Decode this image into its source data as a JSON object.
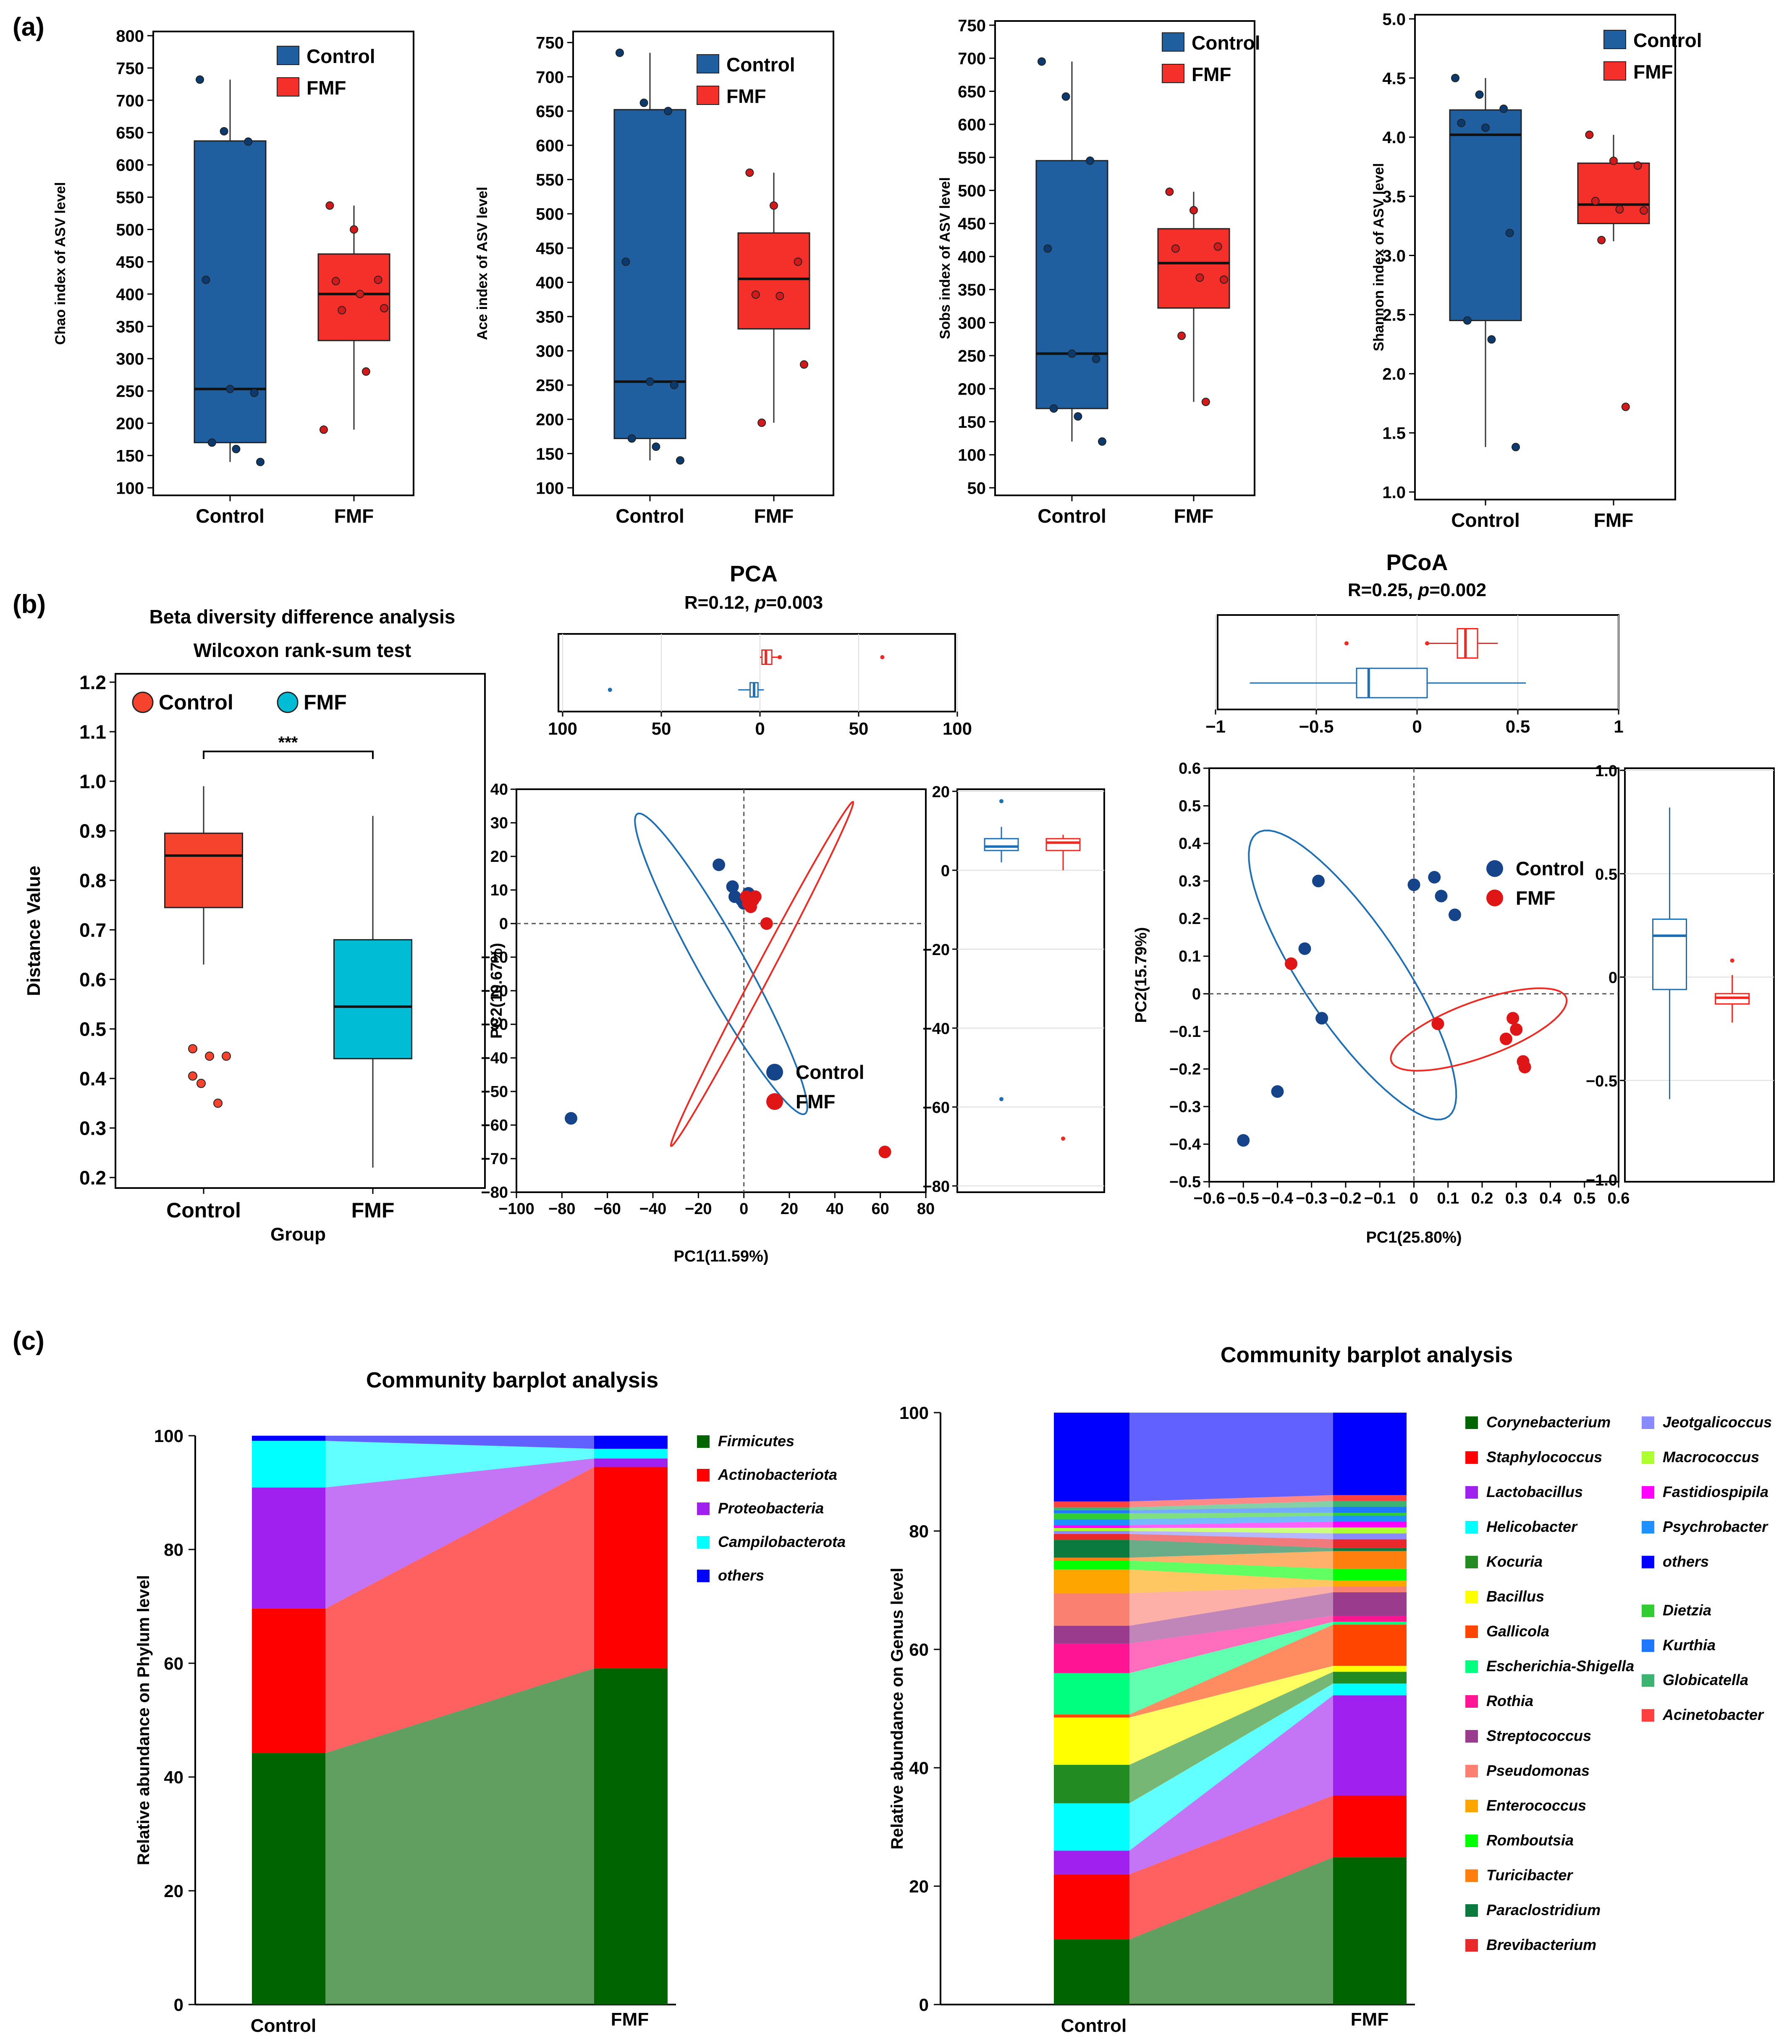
{
  "panel_labels": {
    "a": "(a)",
    "b": "(b)",
    "c": "(c)"
  },
  "colors": {
    "control_box": "#1f5f9f",
    "control_point": "#0b3a6e",
    "fmf_box": "#f5302a",
    "fmf_point": "#d31a1a",
    "beta_control": "#f5432d",
    "beta_fmf": "#00bcd4",
    "ord_control": "#1f6fb5",
    "ord_control_point": "#15448b",
    "ord_fmf": "#f02a22",
    "ord_fmf_point": "#e01515"
  },
  "chart_data": [
    {
      "id": "chao",
      "type": "box",
      "ylabel": "Chao index of ASV level",
      "yticks": [
        100,
        150,
        200,
        250,
        300,
        350,
        400,
        450,
        500,
        550,
        600,
        650,
        700,
        750,
        800
      ],
      "ylim": [
        100,
        800
      ],
      "categories": [
        "Control",
        "FMF"
      ],
      "legend": [
        "Control",
        "FMF"
      ],
      "boxes": [
        {
          "group": "Control",
          "q1": 170,
          "median": 253,
          "q3": 637,
          "whisker_low": 140,
          "whisker_high": 732,
          "points": [
            732,
            652,
            636,
            422,
            253,
            247,
            170,
            160,
            140
          ]
        },
        {
          "group": "FMF",
          "q1": 328,
          "median": 400,
          "q3": 462,
          "whisker_low": 190,
          "whisker_high": 537,
          "points": [
            537,
            500,
            422,
            420,
            400,
            378,
            375,
            280,
            190
          ]
        }
      ]
    },
    {
      "id": "ace",
      "type": "box",
      "ylabel": "Ace index of ASV level",
      "yticks": [
        100,
        150,
        200,
        250,
        300,
        350,
        400,
        450,
        500,
        550,
        600,
        650,
        700,
        750
      ],
      "ylim": [
        100,
        760
      ],
      "categories": [
        "Control",
        "FMF"
      ],
      "legend": [
        "Control",
        "FMF"
      ],
      "boxes": [
        {
          "group": "Control",
          "q1": 172,
          "median": 255,
          "q3": 652,
          "whisker_low": 140,
          "whisker_high": 735,
          "points": [
            735,
            662,
            650,
            430,
            255,
            250,
            172,
            160,
            140
          ]
        },
        {
          "group": "FMF",
          "q1": 332,
          "median": 405,
          "q3": 472,
          "whisker_low": 195,
          "whisker_high": 560,
          "points": [
            560,
            512,
            430,
            382,
            380,
            280,
            195
          ]
        }
      ]
    },
    {
      "id": "sobs",
      "type": "box",
      "ylabel": "Sobs index of ASV level",
      "yticks": [
        50,
        100,
        150,
        200,
        250,
        300,
        350,
        400,
        450,
        500,
        550,
        600,
        650,
        700,
        750
      ],
      "ylim": [
        50,
        750
      ],
      "categories": [
        "Control",
        "FMF"
      ],
      "legend": [
        "Control",
        "FMF"
      ],
      "boxes": [
        {
          "group": "Control",
          "q1": 170,
          "median": 253,
          "q3": 545,
          "whisker_low": 120,
          "whisker_high": 695,
          "points": [
            695,
            642,
            545,
            412,
            253,
            245,
            170,
            158,
            120
          ]
        },
        {
          "group": "FMF",
          "q1": 322,
          "median": 390,
          "q3": 442,
          "whisker_low": 180,
          "whisker_high": 498,
          "points": [
            498,
            470,
            415,
            412,
            368,
            365,
            280,
            180
          ]
        }
      ]
    },
    {
      "id": "shannon",
      "type": "box",
      "ylabel": "Shannon index of ASV level",
      "yticks": [
        1.0,
        1.5,
        2.0,
        2.5,
        3.0,
        3.5,
        4.0,
        4.5,
        5.0
      ],
      "ylim": [
        1.0,
        5.0
      ],
      "categories": [
        "Control",
        "FMF"
      ],
      "legend": [
        "Control",
        "FMF"
      ],
      "boxes": [
        {
          "group": "Control",
          "q1": 2.45,
          "median": 4.02,
          "q3": 4.23,
          "whisker_low": 1.38,
          "whisker_high": 4.5,
          "points": [
            4.5,
            4.36,
            4.24,
            4.12,
            4.08,
            3.19,
            2.45,
            2.29,
            1.38
          ]
        },
        {
          "group": "FMF",
          "q1": 3.27,
          "median": 3.43,
          "q3": 3.78,
          "whisker_low": 3.12,
          "whisker_high": 4.02,
          "points": [
            4.02,
            3.8,
            3.76,
            3.46,
            3.39,
            3.38,
            3.13,
            1.72
          ]
        }
      ]
    },
    {
      "id": "beta",
      "type": "box",
      "title": "Beta diversity difference analysis",
      "subtitle": "Wilcoxon rank-sum test",
      "xlabel": "Group",
      "ylabel": "Distance Value",
      "yticks": [
        0.2,
        0.3,
        0.4,
        0.5,
        0.6,
        0.7,
        0.8,
        0.9,
        1.0,
        1.1,
        1.2
      ],
      "ylim": [
        0.2,
        1.2
      ],
      "categories": [
        "Control",
        "FMF"
      ],
      "legend": [
        "Control",
        "FMF"
      ],
      "significance": "***",
      "boxes": [
        {
          "group": "Control",
          "q1": 0.745,
          "median": 0.85,
          "q3": 0.895,
          "whisker_low": 0.63,
          "whisker_high": 0.99,
          "outliers": [
            0.46,
            0.445,
            0.445,
            0.405,
            0.39,
            0.35
          ]
        },
        {
          "group": "FMF",
          "q1": 0.44,
          "median": 0.545,
          "q3": 0.68,
          "whisker_low": 0.22,
          "whisker_high": 0.93,
          "outliers": []
        }
      ]
    },
    {
      "id": "pca",
      "type": "scatter",
      "title": "PCA",
      "stat_r": "R=0.12, ",
      "stat_p_label": "p",
      "stat_p_value": "=0.003",
      "xlabel": "PC1(11.59%)",
      "ylabel": "PC2(10.67%)",
      "xlim": [
        -100,
        80
      ],
      "ylim": [
        -80,
        40
      ],
      "xticks": [
        -100,
        -80,
        -60,
        -40,
        -20,
        0,
        20,
        40,
        60,
        80
      ],
      "yticks": [
        -80,
        -70,
        -60,
        -50,
        -40,
        -30,
        -20,
        -10,
        0,
        10,
        20,
        30,
        40
      ],
      "top_ticks": [
        "100",
        "50",
        "0",
        "50",
        "100"
      ],
      "right_ticks": [
        "20",
        "0",
        "−20",
        "−40",
        "−60",
        "−80"
      ],
      "legend": [
        "Control",
        "FMF"
      ],
      "series": [
        {
          "name": "Control",
          "points": [
            [
              -11,
              17.5
            ],
            [
              -5,
              11
            ],
            [
              -4,
              8
            ],
            [
              -1,
              7
            ],
            [
              0,
              6
            ],
            [
              2,
              9
            ],
            [
              -76,
              -58
            ]
          ]
        },
        {
          "name": "FMF",
          "points": [
            [
              1,
              8
            ],
            [
              2,
              7
            ],
            [
              3,
              6
            ],
            [
              4,
              7
            ],
            [
              5,
              8
            ],
            [
              3,
              5
            ],
            [
              2,
              6
            ],
            [
              10,
              0
            ],
            [
              62,
              -68
            ]
          ]
        }
      ],
      "ellipses": [
        {
          "name": "Control",
          "cx": -10,
          "cy": -12,
          "rx": 58,
          "ry": 9,
          "angle_deg": -50
        },
        {
          "name": "FMF",
          "cx": 8,
          "cy": -15,
          "rx": 65,
          "ry": 3,
          "angle_deg": 52
        }
      ],
      "top_box": [
        {
          "name": "FMF",
          "q1": 1,
          "median": 3,
          "q3": 6,
          "whisker_low": 0,
          "whisker_high": 9,
          "outliers": [
            62,
            10
          ]
        },
        {
          "name": "Control",
          "q1": -5,
          "median": -3,
          "q3": -1,
          "whisker_low": -11,
          "whisker_high": 2,
          "outliers": [
            -76
          ]
        }
      ],
      "right_box": [
        {
          "name": "Control",
          "q1": 5,
          "median": 6,
          "q3": 8,
          "whisker_low": 2,
          "whisker_high": 11,
          "outliers": [
            17.5,
            -58
          ]
        },
        {
          "name": "FMF",
          "q1": 5,
          "median": 7,
          "q3": 8,
          "whisker_low": 0,
          "whisker_high": 9,
          "outliers": [
            -68
          ]
        }
      ]
    },
    {
      "id": "pcoa",
      "type": "scatter",
      "title": "PCoA",
      "stat_r": "R=0.25, ",
      "stat_p_label": "p",
      "stat_p_value": "=0.002",
      "xlabel": "PC1(25.80%)",
      "ylabel": "PC2(15.79%)",
      "xlim": [
        -0.6,
        0.6
      ],
      "ylim": [
        -0.5,
        0.6
      ],
      "xticks": [
        -0.6,
        -0.5,
        -0.4,
        -0.3,
        -0.2,
        -0.1,
        0,
        0.1,
        0.2,
        0.3,
        0.4,
        0.5,
        0.6
      ],
      "yticks": [
        -0.5,
        -0.4,
        -0.3,
        -0.2,
        -0.1,
        0,
        0.1,
        0.2,
        0.3,
        0.4,
        0.5,
        0.6
      ],
      "top_ticks": [
        "−1",
        "−0.5",
        "0",
        "0.5",
        "1"
      ],
      "right_ticks": [
        "1.0",
        "0.5",
        "0",
        "−0.5",
        "−1.0"
      ],
      "legend": [
        "Control",
        "FMF"
      ],
      "series": [
        {
          "name": "Control",
          "points": [
            [
              -0.5,
              -0.39
            ],
            [
              -0.4,
              -0.26
            ],
            [
              -0.32,
              0.12
            ],
            [
              -0.28,
              0.3
            ],
            [
              -0.27,
              -0.065
            ],
            [
              0,
              0.29
            ],
            [
              0.06,
              0.31
            ],
            [
              0.08,
              0.26
            ],
            [
              0.12,
              0.21
            ]
          ]
        },
        {
          "name": "FMF",
          "points": [
            [
              -0.36,
              0.08
            ],
            [
              0.07,
              -0.08
            ],
            [
              0.27,
              -0.12
            ],
            [
              0.29,
              -0.065
            ],
            [
              0.3,
              -0.095
            ],
            [
              0.32,
              -0.18
            ],
            [
              0.325,
              -0.195
            ]
          ]
        }
      ],
      "ellipses": [
        {
          "name": "Control",
          "cx": -0.18,
          "cy": 0.05,
          "rx": 0.47,
          "ry": 0.14,
          "angle_deg": -53
        },
        {
          "name": "FMF",
          "cx": 0.19,
          "cy": -0.095,
          "rx": 0.27,
          "ry": 0.075,
          "angle_deg": 18
        }
      ],
      "top_box": [
        {
          "name": "FMF",
          "q1": 0.2,
          "median": 0.24,
          "q3": 0.3,
          "whisker_low": 0.06,
          "whisker_high": 0.4,
          "outliers": [
            -0.35,
            0.05
          ]
        },
        {
          "name": "Control",
          "q1": -0.3,
          "median": -0.24,
          "q3": 0.05,
          "whisker_low": -0.83,
          "whisker_high": 0.54,
          "outliers": []
        }
      ],
      "right_box": [
        {
          "name": "Control",
          "q1": -0.06,
          "median": 0.2,
          "q3": 0.28,
          "whisker_low": -0.59,
          "whisker_high": 0.82,
          "outliers": []
        },
        {
          "name": "FMF",
          "q1": -0.13,
          "median": -0.1,
          "q3": -0.08,
          "whisker_low": -0.22,
          "whisker_high": 0.01,
          "outliers": [
            0.08
          ]
        }
      ]
    },
    {
      "id": "phylum",
      "type": "bar",
      "stacked": true,
      "title": "Community barplot analysis",
      "ylabel": "Relative abundance on Phylum level",
      "categories": [
        "Control",
        "FMF"
      ],
      "yticks": [
        0,
        20,
        40,
        60,
        80,
        100
      ],
      "ylim": [
        0,
        100
      ],
      "series": [
        {
          "name": "Firmicutes",
          "color": "#006400",
          "values": [
            44.2,
            59.1
          ]
        },
        {
          "name": "Actinobacteriota",
          "color": "#ff0000",
          "values": [
            25.4,
            35.4
          ]
        },
        {
          "name": "Proteobacteria",
          "color": "#a020f0",
          "values": [
            21.3,
            1.5
          ]
        },
        {
          "name": "Campilobacterota",
          "color": "#00ffff",
          "values": [
            8.2,
            1.7
          ]
        },
        {
          "name": "others",
          "color": "#0000ff",
          "values": [
            0.9,
            2.3
          ]
        }
      ]
    },
    {
      "id": "genus",
      "type": "bar",
      "stacked": true,
      "title": "Community barplot analysis",
      "ylabel": "Relative abundance on Genus level",
      "categories": [
        "Control",
        "FMF"
      ],
      "yticks": [
        0,
        20,
        40,
        60,
        80,
        100
      ],
      "ylim": [
        0,
        100
      ],
      "series": [
        {
          "name": "Corynebacterium",
          "color": "#006400",
          "values": [
            11,
            25
          ]
        },
        {
          "name": "Staphylococcus",
          "color": "#ff0000",
          "values": [
            11,
            10.5
          ]
        },
        {
          "name": "Lactobacillus",
          "color": "#a020f0",
          "values": [
            4,
            17
          ]
        },
        {
          "name": "Helicobacter",
          "color": "#00ffff",
          "values": [
            8,
            2
          ]
        },
        {
          "name": "Kocuria",
          "color": "#228b22",
          "values": [
            6.5,
            2
          ]
        },
        {
          "name": "Bacillus",
          "color": "#ffff00",
          "values": [
            8,
            1
          ]
        },
        {
          "name": "Gallicola",
          "color": "#ff4500",
          "values": [
            0.5,
            7
          ]
        },
        {
          "name": "Escherichia-Shigella",
          "color": "#00ff7f",
          "values": [
            7,
            0.5
          ]
        },
        {
          "name": "Rothia",
          "color": "#ff1493",
          "values": [
            5,
            1
          ]
        },
        {
          "name": "Streptococcus",
          "color": "#9b3b8e",
          "values": [
            3,
            4
          ]
        },
        {
          "name": "Pseudomonas",
          "color": "#fa8072",
          "values": [
            5.5,
            1
          ]
        },
        {
          "name": "Enterococcus",
          "color": "#ffa500",
          "values": [
            4,
            1
          ]
        },
        {
          "name": "Romboutsia",
          "color": "#00ff00",
          "values": [
            1.5,
            2
          ]
        },
        {
          "name": "Turicibacter",
          "color": "#ff7f0e",
          "values": [
            0.5,
            3
          ]
        },
        {
          "name": "Paraclostridium",
          "color": "#0b7a3e",
          "values": [
            3,
            0.5
          ]
        },
        {
          "name": "Brevibacterium",
          "color": "#e8282b",
          "values": [
            1,
            1.5
          ]
        },
        {
          "name": "Jeotgalicoccus",
          "color": "#8a8aff",
          "values": [
            0.5,
            1
          ]
        },
        {
          "name": "Macrococcus",
          "color": "#adff2f",
          "values": [
            0.5,
            1
          ]
        },
        {
          "name": "Fastidiospipila",
          "color": "#ff00ff",
          "values": [
            0.5,
            1
          ]
        },
        {
          "name": "Psychrobacter",
          "color": "#1e90ff",
          "values": [
            1,
            1
          ]
        },
        {
          "name": "Dietzia",
          "color": "#32cd32",
          "values": [
            1,
            0.5
          ]
        },
        {
          "name": "Kurthia",
          "color": "#1e78ff",
          "values": [
            0.5,
            1
          ]
        },
        {
          "name": "Globicatella",
          "color": "#3cb371",
          "values": [
            0.5,
            1
          ]
        },
        {
          "name": "Acinetobacter",
          "color": "#ff4040",
          "values": [
            1,
            1
          ]
        },
        {
          "name": "others",
          "color": "#0000ff",
          "values": [
            15,
            14
          ]
        }
      ]
    }
  ]
}
